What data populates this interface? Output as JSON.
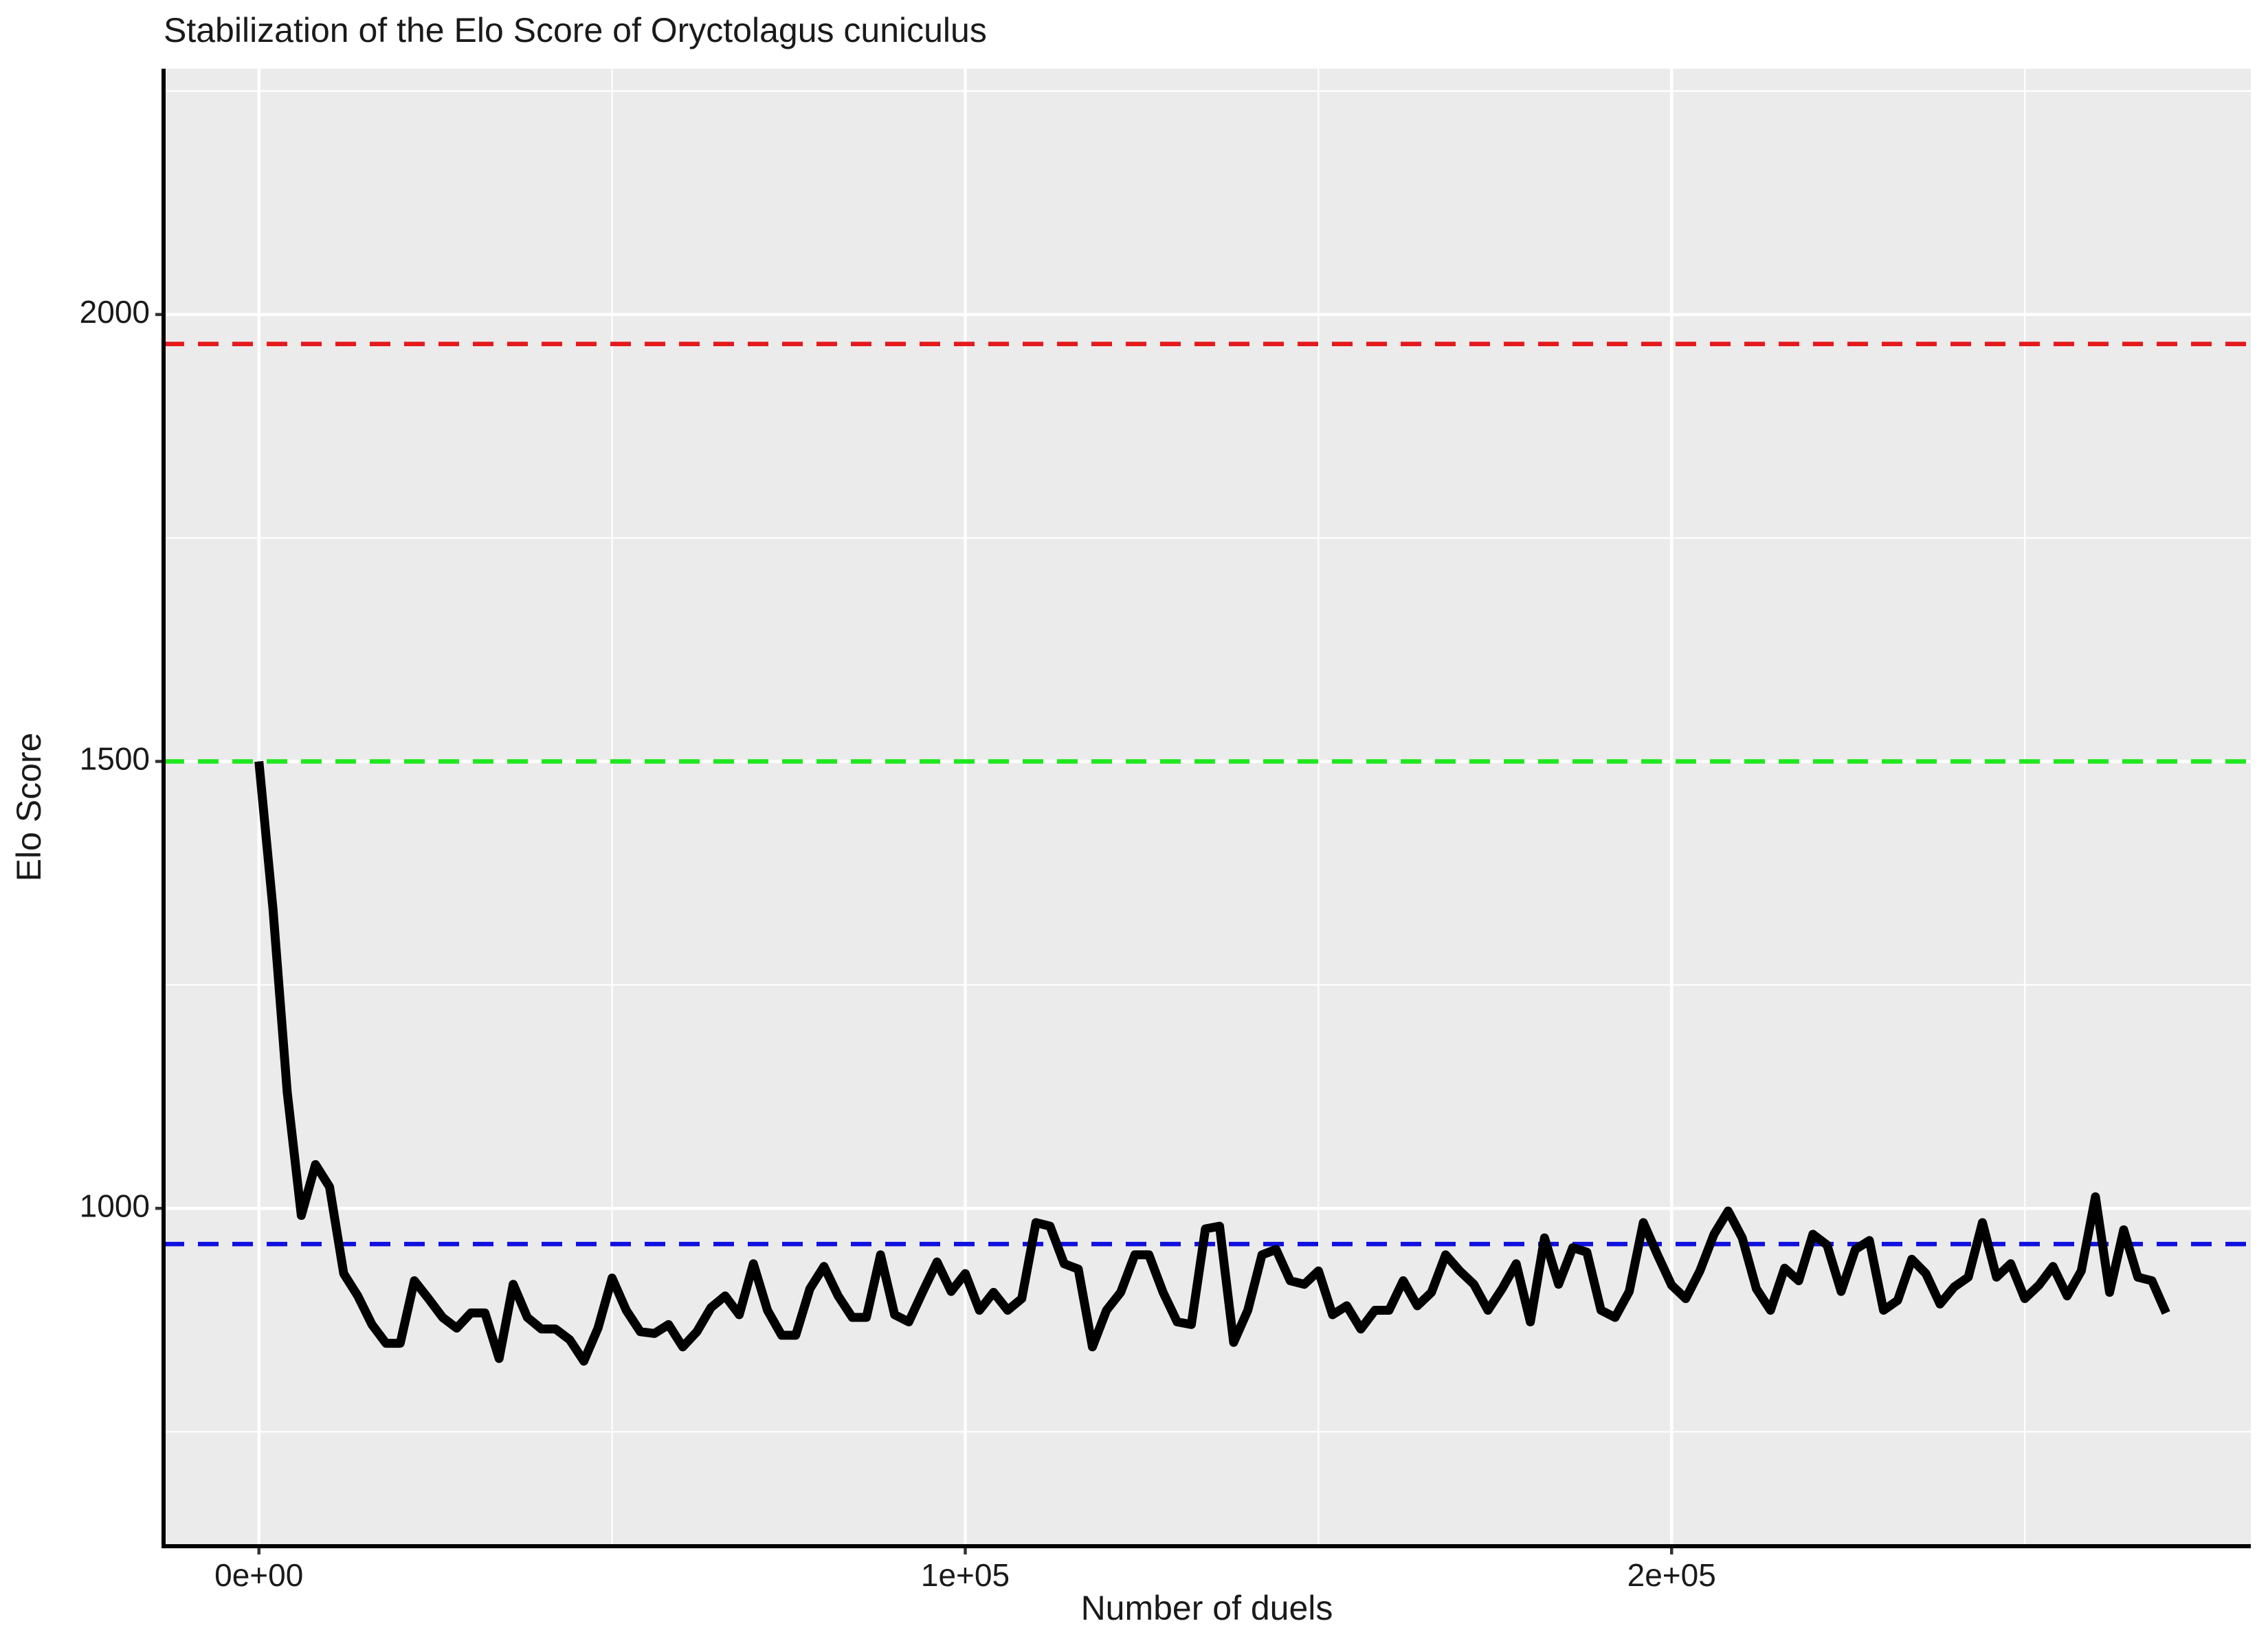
{
  "chart_data": {
    "type": "line",
    "title": "Stabilization of the Elo Score of Oryctolagus cuniculus",
    "x_label": "Number of duels",
    "y_label": "Elo Score",
    "xlim": [
      -13500,
      282000
    ],
    "ylim": [
      622,
      2275
    ],
    "xticks": [
      {
        "value": 0,
        "label": "0e+00"
      },
      {
        "value": 100000,
        "label": "1e+05"
      },
      {
        "value": 200000,
        "label": "2e+05"
      }
    ],
    "yticks": [
      1000,
      1500,
      2000
    ],
    "x_minor_grid": [
      50000,
      150000,
      250000
    ],
    "y_minor_grid": [
      750,
      1250,
      1750,
      2250
    ],
    "grid": true,
    "hlines": [
      {
        "value": 1967,
        "color": "#e41a1c"
      },
      {
        "value": 1500,
        "color": "#1ee81e"
      },
      {
        "value": 960,
        "color": "#1010e0"
      }
    ],
    "color": "#000000",
    "x": [
      0,
      2000,
      4000,
      6000,
      8000,
      10000,
      12000,
      14000,
      16000,
      18000,
      20000,
      22000,
      24000,
      26000,
      28000,
      30000,
      32000,
      34000,
      36000,
      38000,
      40000,
      42000,
      44000,
      46000,
      48000,
      50000,
      52000,
      54000,
      56000,
      58000,
      60000,
      62000,
      64000,
      66000,
      68000,
      70000,
      72000,
      74000,
      76000,
      78000,
      80000,
      82000,
      84000,
      86000,
      88000,
      90000,
      92000,
      94000,
      96000,
      98000,
      100000,
      102000,
      104000,
      106000,
      108000,
      110000,
      112000,
      114000,
      116000,
      118000,
      120000,
      122000,
      124000,
      126000,
      128000,
      130000,
      132000,
      134000,
      136000,
      138000,
      140000,
      142000,
      144000,
      146000,
      148000,
      150000,
      152000,
      154000,
      156000,
      158000,
      160000,
      162000,
      164000,
      166000,
      168000,
      170000,
      172000,
      174000,
      176000,
      178000,
      180000,
      182000,
      184000,
      186000,
      188000,
      190000,
      192000,
      194000,
      196000,
      198000,
      200000,
      202000,
      204000,
      206000,
      208000,
      210000,
      212000,
      214000,
      216000,
      218000,
      220000,
      222000,
      224000,
      226000,
      228000,
      230000,
      232000,
      234000,
      236000,
      238000,
      240000,
      242000,
      244000,
      246000,
      248000,
      250000,
      252000,
      254000,
      256000,
      258000,
      260000,
      262000,
      264000,
      266000,
      268000,
      270000
    ],
    "values": [
      1500,
      1334,
      1130,
      992,
      1049,
      1024,
      927,
      902,
      870,
      849,
      849,
      919,
      899,
      878,
      866,
      883,
      883,
      832,
      915,
      878,
      865,
      865,
      853,
      829,
      866,
      922,
      886,
      862,
      860,
      870,
      845,
      862,
      889,
      902,
      881,
      938,
      886,
      858,
      858,
      910,
      935,
      902,
      878,
      878,
      948,
      881,
      873,
      907,
      940,
      907,
      927,
      886,
      906,
      886,
      899,
      984,
      980,
      938,
      932,
      845,
      886,
      906,
      948,
      948,
      906,
      873,
      870,
      977,
      980,
      850,
      886,
      948,
      954,
      919,
      915,
      930,
      881,
      891,
      865,
      886,
      886,
      919,
      891,
      906,
      948,
      930,
      915,
      886,
      910,
      938,
      873,
      967,
      915,
      956,
      951,
      886,
      878,
      907,
      984,
      948,
      914,
      899,
      930,
      971,
      997,
      967,
      910,
      886,
      933,
      919,
      971,
      959,
      907,
      954,
      964,
      886,
      897,
      943,
      927,
      893,
      912,
      923,
      984,
      923,
      938,
      899,
      914,
      935,
      902,
      930,
      1013,
      906,
      976,
      923,
      919,
      883
    ]
  }
}
